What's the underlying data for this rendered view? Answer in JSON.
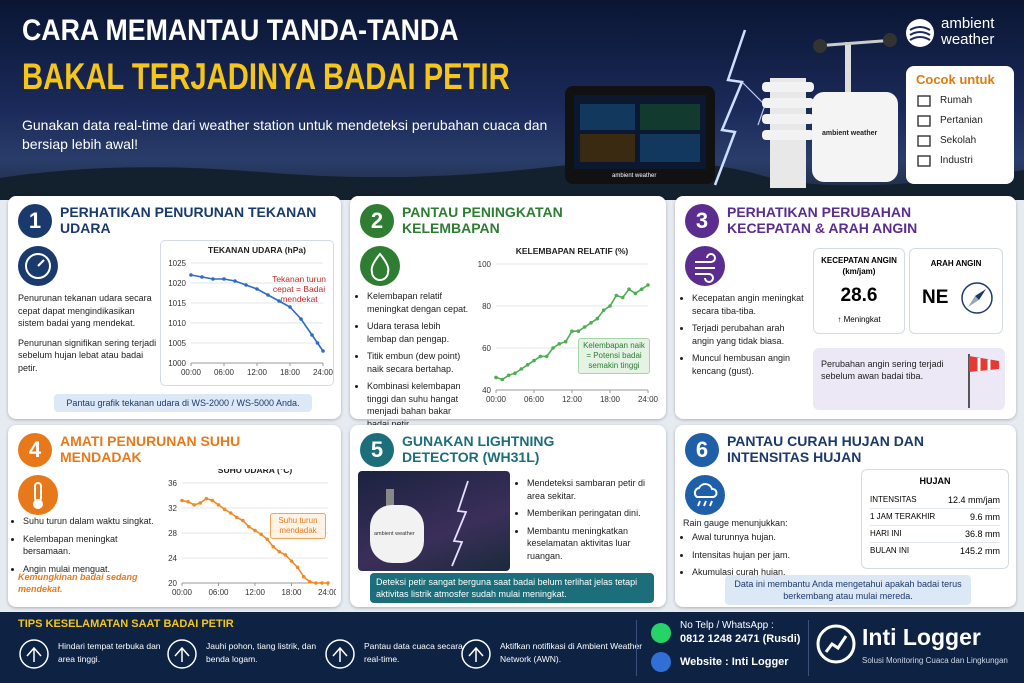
{
  "header": {
    "title_line1": "CARA MEMANTAU TANDA-TANDA",
    "title_line2": "BAKAL TERJADINYA BADAI PETIR",
    "subtitle": "Gunakan data real-time dari weather station untuk mendeteksi perubahan cuaca dan bersiap lebih awal!",
    "brand": [
      "ambient",
      "weather"
    ],
    "device_label": "ambient weather",
    "suitable_title": "Cocok untuk",
    "suitable_items": [
      "Rumah",
      "Pertanian",
      "Sekolah",
      "Industri"
    ]
  },
  "panels": [
    {
      "number": 1,
      "title": "PERHATIKAN PENURUNAN TEKANAN UDARA",
      "paragraphs": [
        "Penurunan tekanan udara secara cepat dapat mengindikasikan sistem badai yang mendekat.",
        "Penurunan signifikan sering terjadi sebelum hujan lebat atau badai petir."
      ],
      "note": "Pantau grafik tekanan udara di WS-2000 / WS-5000 Anda.",
      "chart": {
        "type": "line",
        "title": "TEKANAN UDARA (hPa)",
        "color": "#2d6bc4",
        "grid": true,
        "x": [
          0,
          2,
          4,
          6,
          8,
          10,
          12,
          14,
          16,
          18,
          20,
          22,
          23,
          24
        ],
        "values": [
          1022,
          1021.5,
          1021,
          1021,
          1020.5,
          1019.5,
          1018.5,
          1017,
          1015.5,
          1014,
          1011,
          1007,
          1005,
          1003
        ],
        "xlim": [
          0,
          24
        ],
        "xticks": [
          {
            "value": 0,
            "label": "00:00"
          },
          {
            "value": 6,
            "label": "06:00"
          },
          {
            "value": 12,
            "label": "12:00"
          },
          {
            "value": 18,
            "label": "18:00"
          },
          {
            "value": 24,
            "label": "24:00"
          }
        ],
        "ylim": [
          1000,
          1025
        ],
        "yticks": [
          1000,
          1005,
          1010,
          1015,
          1020,
          1025
        ],
        "annotation": "Tekanan turun cepat = Badai mendekat"
      }
    },
    {
      "number": 2,
      "title": "PANTAU PENINGKATAN KELEMBAPAN",
      "bullets": [
        "Kelembapan relatif meningkat dengan cepat.",
        "Udara terasa lebih lembap dan pengap.",
        "Titik embun (dew point) naik secara bertahap.",
        "Kombinasi kelembapan tinggi dan suhu hangat menjadi bahan bakar badai petir."
      ],
      "chart": {
        "type": "line",
        "title": "KELEMBAPAN RELATIF (%)",
        "color": "#4caf50",
        "grid": true,
        "x": [
          0,
          1,
          2,
          3,
          4,
          5,
          6,
          7,
          8,
          9,
          10,
          11,
          12,
          13,
          14,
          15,
          16,
          17,
          18,
          19,
          20,
          21,
          22,
          23,
          24
        ],
        "values": [
          46,
          45,
          47,
          48,
          50,
          52,
          54,
          56,
          56,
          60,
          62,
          63,
          68,
          68,
          70,
          72,
          74,
          78,
          80,
          85,
          84,
          88,
          86,
          88,
          90
        ],
        "xlim": [
          0,
          24
        ],
        "xticks": [
          {
            "value": 0,
            "label": "00:00"
          },
          {
            "value": 6,
            "label": "06:00"
          },
          {
            "value": 12,
            "label": "12:00"
          },
          {
            "value": 18,
            "label": "18:00"
          },
          {
            "value": 24,
            "label": "24:00"
          }
        ],
        "ylim": [
          40,
          100
        ],
        "yticks": [
          40,
          60,
          80,
          100
        ],
        "annotation": "Kelembapan naik = Potensi badai semakin tinggi"
      }
    },
    {
      "number": 3,
      "title": "PERHATIKAN PERUBAHAN KECEPATAN & ARAH ANGIN",
      "bullets": [
        "Kecepatan angin meningkat secara tiba-tiba.",
        "Terjadi perubahan arah angin yang tidak biasa.",
        "Muncul hembusan angin kencang (gust)."
      ],
      "speed_title": "KECEPATAN ANGIN (km/jam)",
      "speed_value": 28.6,
      "speed_trend": "↑ Meningkat",
      "direction_title": "ARAH ANGIN",
      "direction_value": "NE",
      "note": "Perubahan angin sering terjadi sebelum awan badai tiba."
    },
    {
      "number": 4,
      "title": "AMATI PENURUNAN SUHU MENDADAK",
      "bullets": [
        "Suhu turun dalam waktu singkat.",
        "Kelembapan meningkat bersamaan.",
        "Angin mulai menguat."
      ],
      "warning": "Kemungkinan badai sedang mendekat.",
      "chart": {
        "type": "line",
        "title": "SUHU UDARA (°C)",
        "color": "#f08a24",
        "grid": true,
        "x": [
          0,
          1,
          2,
          3,
          4,
          5,
          6,
          7,
          8,
          9,
          10,
          11,
          12,
          13,
          14,
          15,
          16,
          17,
          18,
          19,
          20,
          21,
          22,
          23,
          24
        ],
        "values": [
          33.2,
          33,
          32.5,
          32.8,
          33.5,
          33.2,
          32.5,
          31.8,
          31.2,
          30.5,
          30,
          29,
          28.4,
          27.8,
          27,
          25.8,
          25,
          24.5,
          23.5,
          22.5,
          21,
          20.2,
          20,
          20,
          20
        ],
        "xlim": [
          0,
          24
        ],
        "xticks": [
          {
            "value": 0,
            "label": "00:00"
          },
          {
            "value": 6,
            "label": "06:00"
          },
          {
            "value": 12,
            "label": "12:00"
          },
          {
            "value": 18,
            "label": "18:00"
          },
          {
            "value": 24,
            "label": "24:00"
          }
        ],
        "ylim": [
          20,
          36
        ],
        "yticks": [
          20,
          24,
          28,
          32,
          36
        ],
        "annotation": "Suhu turun mendadak"
      }
    },
    {
      "number": 5,
      "title": "GUNAKAN LIGHTNING DETECTOR (WH31L)",
      "device_label": "ambient weather",
      "bullets": [
        "Mendeteksi sambaran petir di area sekitar.",
        "Memberikan peringatan dini.",
        "Membantu meningkatkan keselamatan aktivitas luar ruangan."
      ],
      "note": "Deteksi petir sangat berguna saat badai belum terlihat jelas tetapi aktivitas listrik atmosfer sudah mulai meningkat."
    },
    {
      "number": 6,
      "title": "PANTAU CURAH HUJAN DAN INTENSITAS HUJAN",
      "intro": "Rain gauge menunjukkan:",
      "bullets": [
        "Awal turunnya hujan.",
        "Intensitas hujan per jam.",
        "Akumulasi curah hujan."
      ],
      "table": {
        "title": "HUJAN",
        "rows": [
          [
            "INTENSITAS",
            "12.4 mm/jam"
          ],
          [
            "1 JAM TERAKHIR",
            "9.6 mm"
          ],
          [
            "HARI INI",
            "36.8 mm"
          ],
          [
            "BULAN INI",
            "145.2 mm"
          ]
        ]
      },
      "note": "Data ini membantu Anda mengetahui apakah badai terus berkembang atau mulai mereda."
    }
  ],
  "tips": {
    "title": "TIPS KESELAMATAN SAAT BADAI PETIR",
    "items": [
      "Hindari tempat terbuka dan area tinggi.",
      "Jauhi pohon, tiang listrik, dan benda logam.",
      "Pantau data cuaca secara real-time.",
      "Aktifkan notifikasi di Ambient Weather Network (AWN)."
    ]
  },
  "contact": {
    "phone_label": "No Telp / WhatsApp :",
    "phone": "0812 1248 2471 (Rusdi)",
    "website": "Website : Inti Logger"
  },
  "logo": {
    "name": "Inti Logger",
    "tagline": "Solusi Monitoring Cuaca dan Lingkungan"
  }
}
